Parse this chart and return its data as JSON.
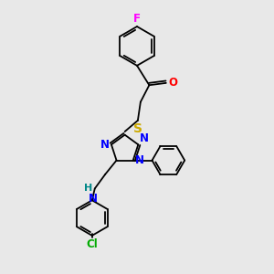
{
  "bg_color": "#e8e8e8",
  "bond_color": "#000000",
  "atom_colors": {
    "F": "#ff00ff",
    "O": "#ff0000",
    "S": "#ccaa00",
    "N": "#0000ff",
    "Cl": "#00aa00",
    "H": "#008888",
    "C": "#000000"
  },
  "font_size": 8.5,
  "fig_width": 3.0,
  "fig_height": 3.0,
  "dpi": 100,
  "lw": 1.3
}
